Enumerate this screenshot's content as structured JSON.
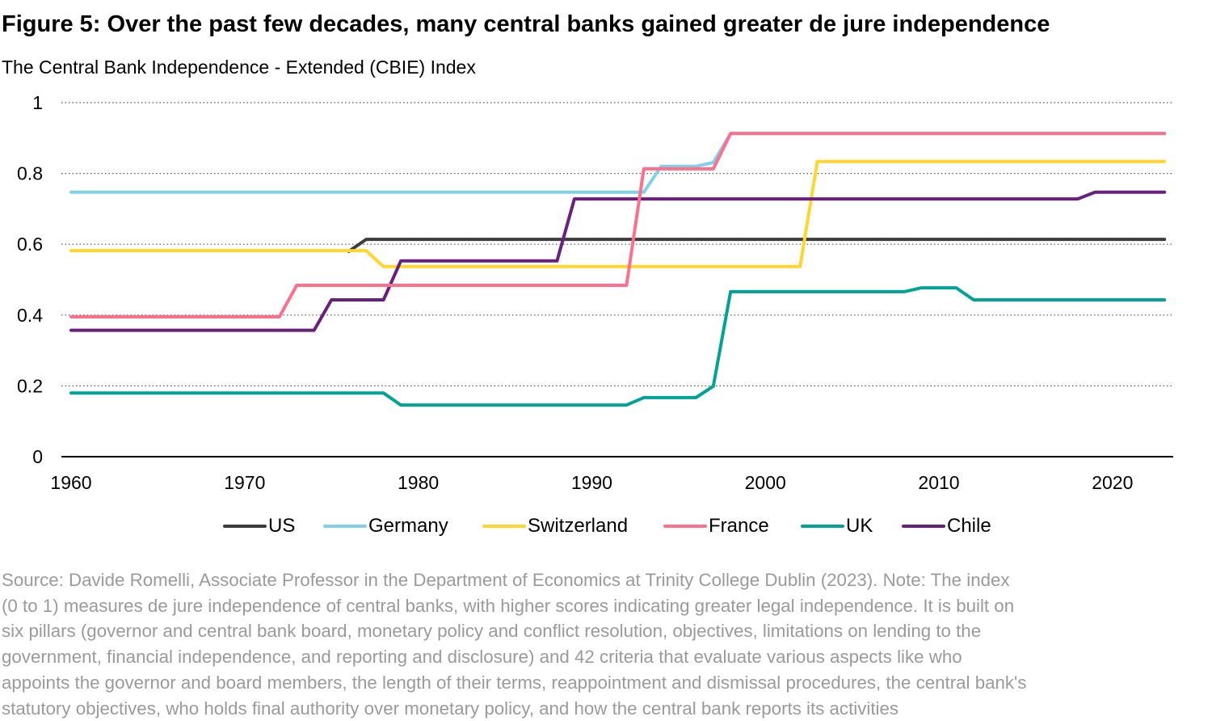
{
  "title": "Figure 5: Over the past few decades, many central banks gained greater de jure independence",
  "subtitle": "The Central Bank Independence - Extended (CBIE) Index",
  "source_lines": [
    "Source: Davide Romelli, Associate Professor in the Department of Economics at Trinity College Dublin (2023). Note: The index",
    "(0 to 1) measures de jure independence of central banks, with higher scores indicating greater legal independence. It is built on",
    "six pillars (governor and central bank board, monetary policy and conflict resolution, objectives, limitations on lending to the",
    "government, financial independence, and reporting and disclosure) and 42 criteria that evaluate various aspects like who",
    "appoints the governor and board members, the length of their terms, reappointment and dismissal procedures, the central bank's",
    "statutory objectives, who holds final authority over monetary policy, and how the central bank reports its activities"
  ],
  "chart_data": {
    "type": "line",
    "title": "",
    "xlabel": "",
    "ylabel": "",
    "xlim": [
      1960,
      2023
    ],
    "ylim": [
      0,
      1
    ],
    "x_ticks": [
      "1960",
      "1970",
      "1980",
      "1990",
      "2000",
      "2010",
      "2020"
    ],
    "y_ticks": [
      "0",
      "0.2",
      "0.4",
      "0.6",
      "0.8",
      "1"
    ],
    "grid": "horizontal dotted",
    "legend_position": "bottom",
    "series": [
      {
        "name": "US",
        "color": "#3c3c3c",
        "points": [
          [
            1976,
            0.58
          ],
          [
            1977,
            0.614
          ],
          [
            2023,
            0.614
          ]
        ]
      },
      {
        "name": "Germany",
        "color": "#7fd1e8",
        "points": [
          [
            1960,
            0.747
          ],
          [
            1993,
            0.747
          ],
          [
            1994,
            0.82
          ],
          [
            1996,
            0.82
          ],
          [
            1997,
            0.831
          ],
          [
            1998,
            0.913
          ],
          [
            2023,
            0.913
          ]
        ]
      },
      {
        "name": "Switzerland",
        "color": "#ffd52e",
        "points": [
          [
            1960,
            0.582
          ],
          [
            1977,
            0.582
          ],
          [
            1978,
            0.537
          ],
          [
            2002,
            0.537
          ],
          [
            2003,
            0.834
          ],
          [
            2023,
            0.834
          ]
        ]
      },
      {
        "name": "France",
        "color": "#ff6f8c",
        "points": [
          [
            1960,
            0.395
          ],
          [
            1972,
            0.395
          ],
          [
            1973,
            0.484
          ],
          [
            1992,
            0.484
          ],
          [
            1993,
            0.813
          ],
          [
            1997,
            0.813
          ],
          [
            1998,
            0.913
          ],
          [
            2023,
            0.913
          ]
        ]
      },
      {
        "name": "UK",
        "color": "#00a396",
        "points": [
          [
            1960,
            0.18
          ],
          [
            1978,
            0.18
          ],
          [
            1979,
            0.146
          ],
          [
            1992,
            0.146
          ],
          [
            1993,
            0.167
          ],
          [
            1996,
            0.167
          ],
          [
            1997,
            0.199
          ],
          [
            1998,
            0.466
          ],
          [
            2008,
            0.466
          ],
          [
            2009,
            0.477
          ],
          [
            2011,
            0.477
          ],
          [
            2012,
            0.443
          ],
          [
            2023,
            0.443
          ]
        ]
      },
      {
        "name": "Chile",
        "color": "#6a1f7f",
        "points": [
          [
            1960,
            0.357
          ],
          [
            1974,
            0.357
          ],
          [
            1975,
            0.443
          ],
          [
            1978,
            0.443
          ],
          [
            1979,
            0.553
          ],
          [
            1988,
            0.553
          ],
          [
            1989,
            0.728
          ],
          [
            2018,
            0.728
          ],
          [
            2019,
            0.747
          ],
          [
            2023,
            0.747
          ]
        ]
      }
    ]
  }
}
